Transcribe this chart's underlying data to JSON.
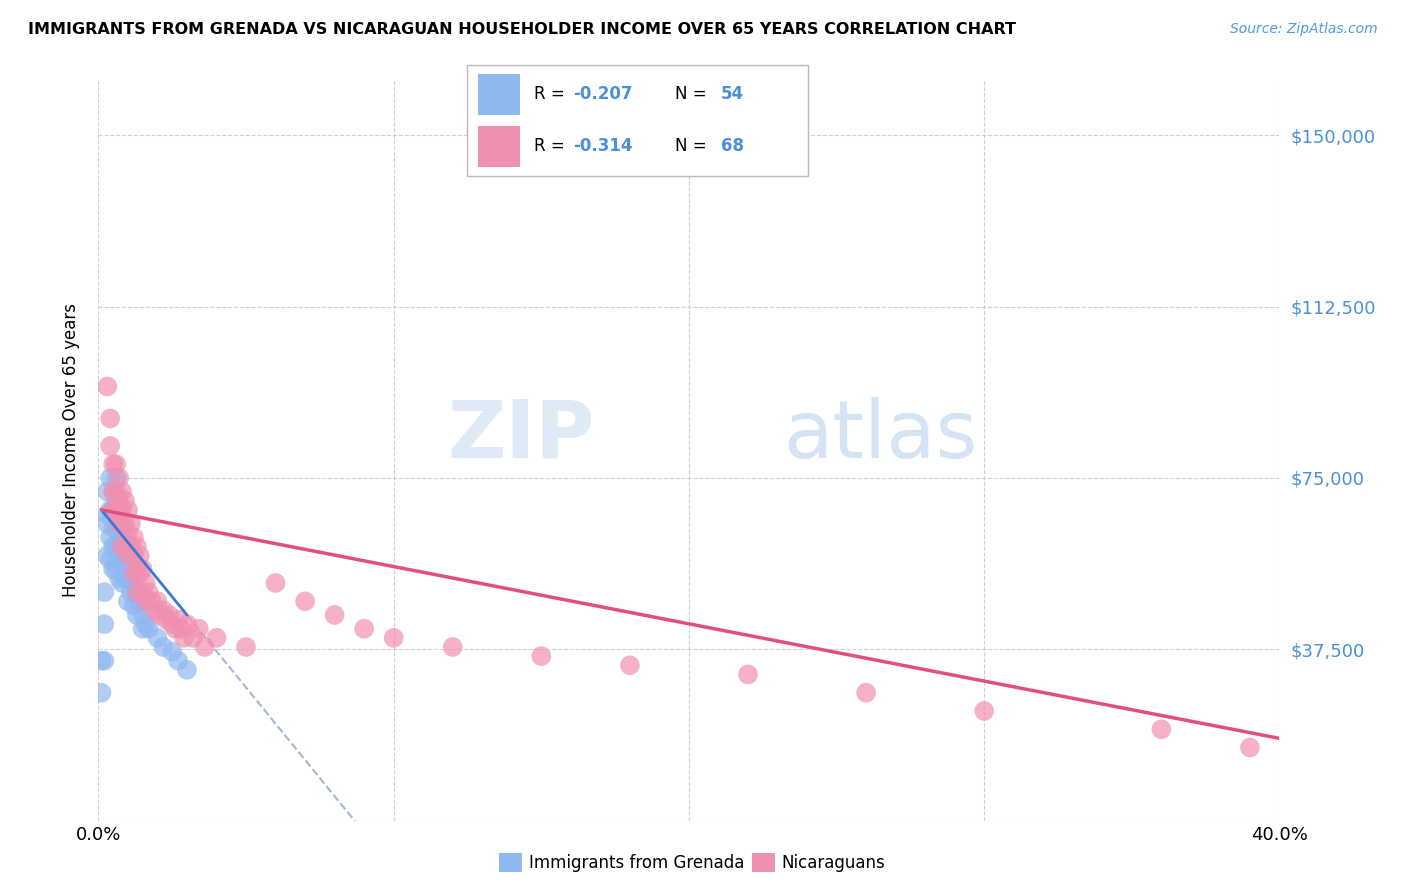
{
  "title": "IMMIGRANTS FROM GRENADA VS NICARAGUAN HOUSEHOLDER INCOME OVER 65 YEARS CORRELATION CHART",
  "source": "Source: ZipAtlas.com",
  "ylabel": "Householder Income Over 65 years",
  "xlim": [
    0.0,
    0.4
  ],
  "ylim": [
    0,
    162000
  ],
  "yticks": [
    0,
    37500,
    75000,
    112500,
    150000
  ],
  "ytick_labels": [
    "",
    "$37,500",
    "$75,000",
    "$112,500",
    "$150,000"
  ],
  "xticks": [
    0.0,
    0.1,
    0.2,
    0.3,
    0.4
  ],
  "xtick_labels": [
    "0.0%",
    "",
    "",
    "",
    "40.0%"
  ],
  "grenada_color": "#90b8f0",
  "nicaraguan_color": "#f090b0",
  "grenada_line_color": "#3a78d4",
  "nicaraguan_line_color": "#e0507a",
  "dashed_line_color": "#a0b8d8",
  "legend_label1": "Immigrants from Grenada",
  "legend_label2": "Nicaraguans",
  "watermark_zip": "ZIP",
  "watermark_atlas": "atlas",
  "grenada_x": [
    0.001,
    0.001,
    0.002,
    0.002,
    0.002,
    0.003,
    0.003,
    0.003,
    0.003,
    0.004,
    0.004,
    0.004,
    0.004,
    0.005,
    0.005,
    0.005,
    0.005,
    0.005,
    0.006,
    0.006,
    0.006,
    0.006,
    0.006,
    0.007,
    0.007,
    0.007,
    0.007,
    0.008,
    0.008,
    0.008,
    0.008,
    0.009,
    0.009,
    0.009,
    0.01,
    0.01,
    0.01,
    0.01,
    0.011,
    0.011,
    0.012,
    0.012,
    0.013,
    0.013,
    0.014,
    0.015,
    0.015,
    0.016,
    0.017,
    0.02,
    0.022,
    0.025,
    0.027,
    0.03
  ],
  "grenada_y": [
    35000,
    28000,
    50000,
    43000,
    35000,
    67000,
    72000,
    65000,
    58000,
    75000,
    68000,
    62000,
    57000,
    72000,
    68000,
    64000,
    60000,
    55000,
    75000,
    70000,
    65000,
    60000,
    55000,
    68000,
    63000,
    58000,
    53000,
    65000,
    60000,
    57000,
    52000,
    62000,
    58000,
    53000,
    60000,
    57000,
    53000,
    48000,
    55000,
    50000,
    52000,
    47000,
    50000,
    45000,
    48000,
    45000,
    42000,
    43000,
    42000,
    40000,
    38000,
    37000,
    35000,
    33000
  ],
  "nicaraguan_x": [
    0.003,
    0.004,
    0.004,
    0.005,
    0.005,
    0.005,
    0.006,
    0.006,
    0.006,
    0.007,
    0.007,
    0.007,
    0.008,
    0.008,
    0.008,
    0.008,
    0.009,
    0.009,
    0.009,
    0.01,
    0.01,
    0.01,
    0.011,
    0.011,
    0.012,
    0.012,
    0.012,
    0.013,
    0.013,
    0.013,
    0.014,
    0.014,
    0.015,
    0.015,
    0.016,
    0.016,
    0.017,
    0.018,
    0.019,
    0.02,
    0.021,
    0.022,
    0.023,
    0.024,
    0.025,
    0.026,
    0.027,
    0.028,
    0.029,
    0.03,
    0.032,
    0.034,
    0.036,
    0.04,
    0.05,
    0.06,
    0.07,
    0.08,
    0.09,
    0.1,
    0.12,
    0.15,
    0.18,
    0.22,
    0.26,
    0.3,
    0.36,
    0.39
  ],
  "nicaraguan_y": [
    95000,
    88000,
    82000,
    78000,
    72000,
    68000,
    78000,
    72000,
    68000,
    75000,
    70000,
    65000,
    72000,
    68000,
    65000,
    60000,
    70000,
    65000,
    60000,
    68000,
    63000,
    58000,
    65000,
    60000,
    62000,
    58000,
    54000,
    60000,
    55000,
    50000,
    58000,
    54000,
    55000,
    50000,
    52000,
    48000,
    50000,
    48000,
    46000,
    48000,
    45000,
    46000,
    44000,
    45000,
    43000,
    42000,
    44000,
    42000,
    40000,
    43000,
    40000,
    42000,
    38000,
    40000,
    38000,
    52000,
    48000,
    45000,
    42000,
    40000,
    38000,
    36000,
    34000,
    32000,
    28000,
    24000,
    20000,
    16000
  ]
}
